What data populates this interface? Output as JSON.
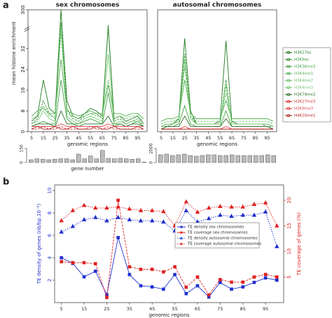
{
  "panel_labels": [
    "a",
    "b"
  ],
  "chart_data": [
    {
      "type": "line",
      "title": "sex chromosomes",
      "xlabel": "genomic regions",
      "ylabel": "mean histone enrichment",
      "x": [
        5,
        10,
        15,
        20,
        25,
        30,
        35,
        40,
        45,
        50,
        55,
        60,
        65,
        70,
        75,
        80,
        85,
        90,
        95,
        100
      ],
      "xlim": [
        2,
        103
      ],
      "xticks": [
        5,
        15,
        25,
        35,
        45,
        55,
        65,
        75,
        85,
        95
      ],
      "ylim": [
        0,
        300
      ],
      "yticks": [
        0,
        8,
        16,
        24,
        32,
        300
      ],
      "axis_break": 40,
      "legend": "right",
      "series": [
        {
          "name": "H3K27ac",
          "color": "#1e7b1e",
          "values": [
            4,
            6,
            20,
            9,
            7,
            300,
            12,
            6,
            5,
            7,
            9,
            8,
            6,
            80,
            5,
            6,
            4,
            5,
            6,
            3
          ]
        },
        {
          "name": "H3K9ac",
          "color": "#2e8f2e",
          "values": [
            3,
            5,
            12,
            7,
            5,
            120,
            9,
            5,
            4,
            6,
            7,
            7,
            5,
            45,
            4,
            5,
            3,
            4,
            5,
            2
          ]
        },
        {
          "name": "H3K36me3",
          "color": "#3f9f3f",
          "values": [
            2,
            3,
            4,
            3,
            3,
            20,
            5,
            3,
            3,
            4,
            5,
            4,
            3,
            15,
            3,
            3,
            2,
            3,
            4,
            2
          ]
        },
        {
          "name": "H3K4me1",
          "color": "#52b052",
          "values": [
            6,
            8,
            9,
            7,
            7,
            28,
            8,
            7,
            6,
            7,
            8,
            7,
            7,
            18,
            7,
            7,
            6,
            7,
            7,
            5
          ]
        },
        {
          "name": "H3K4me2",
          "color": "#62bc62",
          "values": [
            5,
            6,
            10,
            6,
            6,
            38,
            7,
            6,
            5,
            6,
            7,
            6,
            6,
            20,
            5,
            6,
            5,
            6,
            6,
            4
          ]
        },
        {
          "name": "H3K4me3",
          "color": "#74c874",
          "values": [
            3,
            4,
            8,
            5,
            4,
            60,
            6,
            4,
            3,
            5,
            6,
            5,
            4,
            30,
            3,
            4,
            3,
            4,
            4,
            2
          ]
        },
        {
          "name": "H3K79me2",
          "color": "#2a6e2a",
          "values": [
            2,
            3,
            3,
            3,
            2,
            8,
            3,
            3,
            2,
            3,
            3,
            3,
            3,
            6,
            2,
            3,
            2,
            3,
            3,
            2
          ]
        },
        {
          "name": "H3K27me3",
          "color": "#d42a2a",
          "values": [
            1,
            1,
            2,
            1,
            1,
            2,
            1,
            1,
            1,
            1,
            2,
            1,
            1,
            2,
            1,
            1,
            1,
            1,
            1,
            1
          ]
        },
        {
          "name": "H3K9me3",
          "color": "#e04444",
          "values": [
            2,
            2,
            2,
            2,
            2,
            3,
            2,
            2,
            2,
            2,
            2,
            2,
            2,
            3,
            2,
            2,
            2,
            2,
            2,
            2
          ]
        },
        {
          "name": "H4K20me1",
          "color": "#b01e1e",
          "values": [
            1,
            2,
            1,
            1,
            2,
            1,
            1,
            2,
            1,
            1,
            1,
            2,
            1,
            1,
            2,
            1,
            1,
            1,
            2,
            1
          ]
        }
      ]
    },
    {
      "type": "line",
      "title": "autosomal chromosomes",
      "xlabel": "genomic regions",
      "x": [
        5,
        10,
        15,
        20,
        25,
        30,
        35,
        40,
        45,
        50,
        55,
        60,
        65,
        70,
        75,
        80,
        85,
        90,
        95,
        100
      ],
      "xlim": [
        2,
        103
      ],
      "xticks": [
        5,
        15,
        25,
        35,
        45,
        55,
        65,
        75,
        85,
        95
      ],
      "ylim": [
        0,
        300
      ],
      "axis_break": 40,
      "series": [
        {
          "color": "#1e7b1e",
          "values": [
            2,
            3,
            3,
            5,
            36,
            8,
            3,
            3,
            3,
            3,
            4,
            35,
            4,
            3,
            3,
            3,
            3,
            3,
            3,
            2
          ]
        },
        {
          "color": "#2e8f2e",
          "values": [
            2,
            2,
            3,
            4,
            30,
            6,
            3,
            3,
            3,
            3,
            3,
            20,
            3,
            3,
            3,
            3,
            3,
            3,
            2,
            2
          ]
        },
        {
          "color": "#3f9f3f",
          "values": [
            1,
            2,
            2,
            3,
            10,
            3,
            2,
            2,
            2,
            2,
            2,
            8,
            2,
            2,
            2,
            2,
            2,
            2,
            2,
            1
          ]
        },
        {
          "color": "#52b052",
          "values": [
            4,
            5,
            5,
            6,
            20,
            7,
            5,
            5,
            5,
            5,
            5,
            12,
            5,
            5,
            5,
            5,
            5,
            5,
            5,
            4
          ]
        },
        {
          "color": "#62bc62",
          "values": [
            3,
            4,
            4,
            5,
            25,
            6,
            4,
            4,
            4,
            4,
            4,
            15,
            4,
            4,
            4,
            4,
            4,
            4,
            4,
            3
          ]
        },
        {
          "color": "#74c874",
          "values": [
            2,
            3,
            3,
            4,
            28,
            5,
            3,
            3,
            3,
            3,
            3,
            18,
            3,
            3,
            3,
            3,
            3,
            3,
            3,
            2
          ]
        },
        {
          "color": "#2a6e2a",
          "values": [
            1,
            2,
            2,
            2,
            6,
            2,
            2,
            2,
            2,
            2,
            2,
            5,
            2,
            2,
            2,
            2,
            2,
            2,
            2,
            1
          ]
        },
        {
          "color": "#d42a2a",
          "values": [
            1,
            1,
            1,
            1,
            1,
            1,
            1,
            1,
            1,
            1,
            1,
            1,
            1,
            1,
            1,
            1,
            1,
            1,
            1,
            1
          ]
        },
        {
          "color": "#e04444",
          "values": [
            1,
            1,
            1,
            1,
            2,
            1,
            1,
            1,
            1,
            1,
            1,
            2,
            1,
            1,
            1,
            1,
            1,
            1,
            1,
            1
          ]
        },
        {
          "color": "#b01e1e",
          "values": [
            1,
            1,
            1,
            1,
            1,
            1,
            1,
            1,
            1,
            1,
            1,
            1,
            1,
            1,
            1,
            1,
            1,
            1,
            1,
            1
          ]
        }
      ]
    },
    {
      "type": "bar",
      "xlabel": "gene number",
      "color": "#bbbbbb",
      "ylim": [
        0,
        150
      ],
      "yticks": [
        0,
        150
      ],
      "values": [
        30,
        40,
        35,
        30,
        35,
        40,
        40,
        30,
        90,
        40,
        70,
        40,
        130,
        45,
        40,
        45,
        40,
        35,
        40,
        5
      ]
    },
    {
      "type": "bar",
      "color": "#bbbbbb",
      "ylim": [
        0,
        2000
      ],
      "yticks": [
        0,
        2000
      ],
      "values": [
        1100,
        1200,
        1000,
        1100,
        1200,
        1000,
        900,
        1000,
        1100,
        1100,
        1000,
        1000,
        1100,
        1000,
        1000,
        1000,
        1000,
        1000,
        1100,
        1000
      ]
    },
    {
      "type": "line",
      "xlabel": "genomic regions",
      "ylabel": "TE density of genes (nb/bp.10⁻⁶)",
      "y2label": "TE coverage of genes (%)",
      "x": [
        5,
        10,
        15,
        20,
        25,
        30,
        35,
        40,
        45,
        50,
        55,
        60,
        65,
        70,
        75,
        80,
        85,
        90,
        95,
        100
      ],
      "xlim": [
        2,
        103
      ],
      "xticks": [
        5,
        15,
        25,
        35,
        45,
        55,
        65,
        75,
        85,
        95
      ],
      "ylim": [
        0,
        10.5
      ],
      "yticks": [
        2,
        4,
        6,
        8,
        10
      ],
      "y2lim": [
        0,
        23
      ],
      "y2ticks": [
        5,
        10,
        15,
        20
      ],
      "legend": "center",
      "series": [
        {
          "name": "TE density sex chromosomes",
          "color": "#1f2fd0",
          "marker": "square",
          "linestyle": "solid",
          "values": [
            4,
            3.5,
            2.3,
            2.8,
            0.7,
            5.8,
            2.5,
            1.5,
            1.4,
            1.2,
            2.5,
            0.8,
            1.5,
            0.5,
            1.8,
            1.2,
            1.4,
            1.8,
            2.2,
            2.0
          ]
        },
        {
          "name": "TE coverage sex chromosomes",
          "color": "#e02020",
          "marker": "square",
          "linestyle": "solid",
          "axis": "y2",
          "values": [
            8,
            7.8,
            7.8,
            7.6,
            1,
            20,
            7,
            6.5,
            6.5,
            6,
            7,
            3,
            5,
            1.5,
            4.5,
            4,
            4,
            5,
            5.5,
            5
          ]
        },
        {
          "name": "TE density autosomal chromosomes",
          "color": "#1f2fd0",
          "marker": "triangle",
          "linestyle": "dotted",
          "values": [
            6.3,
            6.8,
            7.4,
            7.6,
            7.3,
            7.6,
            7.4,
            7.3,
            7.3,
            7.2,
            6.4,
            8.2,
            7.2,
            7.5,
            7.8,
            7.7,
            7.8,
            7.8,
            8.1,
            5
          ]
        },
        {
          "name": "TE coverage autosomal chromosomes",
          "color": "#e02020",
          "marker": "triangle",
          "linestyle": "dotted",
          "axis": "y2",
          "values": [
            16,
            18,
            19,
            18.5,
            18.5,
            18.7,
            18.3,
            18,
            18,
            17.8,
            15,
            19.7,
            17.7,
            18.5,
            18.8,
            18.7,
            18.7,
            19.2,
            19.5,
            15
          ]
        }
      ]
    }
  ]
}
